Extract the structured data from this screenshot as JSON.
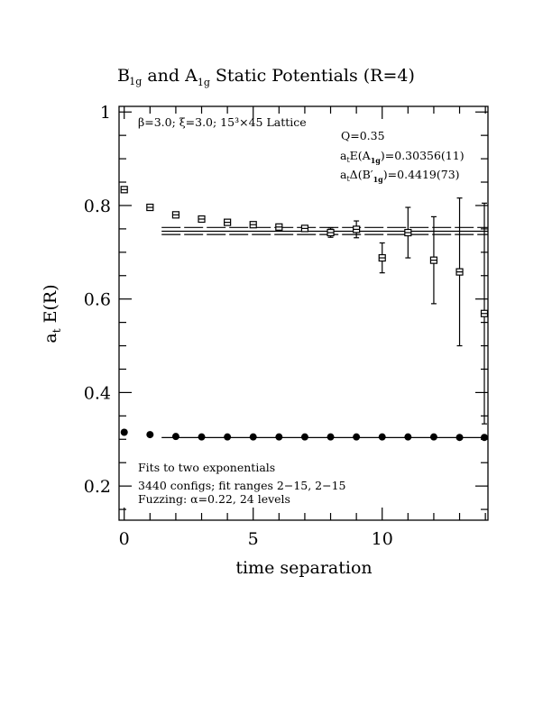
{
  "chart_data": {
    "type": "scatter",
    "title": "B'1g and A1g Static Potentials (R=4)",
    "title_parts": {
      "b": "B",
      "prime": "′",
      "b_sub": "1g",
      "and": " and A",
      "a_sub": "1g",
      "rest": " Static Potentials (R=4)"
    },
    "xlabel": "time separation",
    "ylabel": "a",
    "ylabel_sub": "t",
    "ylabel_rest": " E(R)",
    "xlim": [
      -0.2,
      14.1
    ],
    "ylim": [
      0.127,
      1.012
    ],
    "xticks": [
      0,
      5,
      10
    ],
    "xtick_labels": [
      "0",
      "5",
      "10"
    ],
    "yticks": [
      0.2,
      0.4,
      0.6,
      0.8,
      1
    ],
    "ytick_labels": [
      "0.2",
      "0.4",
      "0.6",
      "0.8",
      "1"
    ],
    "grid": false,
    "annotations": {
      "lattice": "β=3.0; ξ=3.0; 15³×45 Lattice",
      "q": "Q=0.35",
      "energy_a1g": "=0.30356(11)",
      "delta_b1g": "=0.4419(73)",
      "fits": "Fits to two exponentials",
      "configs": "3440 configs; fit ranges 2−15, 2−15",
      "fuzzing": "Fuzzing: α=0.22, 24 levels"
    },
    "series": [
      {
        "marker": "open-square",
        "x": [
          0,
          1,
          2,
          3,
          4,
          5,
          6,
          7,
          8,
          9,
          10,
          11,
          12,
          13,
          14
        ],
        "y": [
          0.834,
          0.796,
          0.78,
          0.771,
          0.764,
          0.759,
          0.754,
          0.751,
          0.742,
          0.749,
          0.688,
          0.742,
          0.683,
          0.658,
          0.569
        ],
        "err": [
          0.003,
          0.003,
          0.002,
          0.003,
          0.004,
          0.003,
          0.004,
          0.003,
          0.01,
          0.018,
          0.032,
          0.054,
          0.093,
          0.158,
          0.236
        ]
      },
      {
        "marker": "filled-circle",
        "x": [
          0,
          1,
          2,
          3,
          4,
          5,
          6,
          7,
          8,
          9,
          10,
          11,
          12,
          13,
          14
        ],
        "y": [
          0.315,
          0.31,
          0.306,
          0.305,
          0.305,
          0.305,
          0.305,
          0.305,
          0.305,
          0.305,
          0.305,
          0.305,
          0.305,
          0.304,
          0.304
        ],
        "err": [
          0,
          0,
          0,
          0,
          0,
          0,
          0,
          0,
          0,
          0,
          0,
          0,
          0,
          0,
          0
        ]
      }
    ],
    "fits": [
      {
        "x_range": [
          1.45,
          14.1
        ],
        "y": 0.745,
        "y_low": 0.738,
        "y_high": 0.753
      },
      {
        "x_range": [
          1.45,
          14.1
        ],
        "y": 0.3036
      }
    ]
  }
}
